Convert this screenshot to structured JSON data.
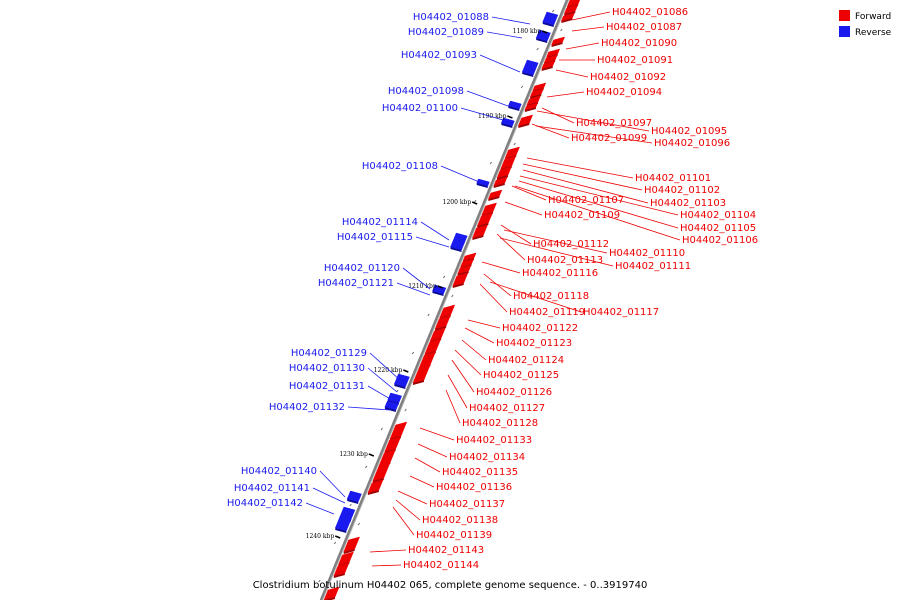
{
  "caption": "Clostridium botulinum H04402 065, complete genome sequence. - 0..3919740",
  "colors": {
    "forward": "#ee0000",
    "reverse": "#1a1aee",
    "backbone": "#808080"
  },
  "legend": [
    {
      "label": "Forward",
      "color": "#ee0000"
    },
    {
      "label": "Reverse",
      "color": "#1a1aee"
    }
  ],
  "ticks": [
    "1180 kbp",
    "1190 kbp",
    "1200 kbp",
    "1210 kbp",
    "1220 kbp",
    "1230 kbp",
    "1240 kbp"
  ],
  "reverse_labels": [
    "H04402_01088",
    "H04402_01089",
    "H04402_01093",
    "H04402_01098",
    "H04402_01100",
    "H04402_01108",
    "H04402_01114",
    "H04402_01115",
    "H04402_01120",
    "H04402_01121",
    "H04402_01129",
    "H04402_01130",
    "H04402_01131",
    "H04402_01132",
    "H04402_01140",
    "H04402_01141",
    "H04402_01142"
  ],
  "forward_labels": [
    "H04402_01086",
    "H04402_01087",
    "H04402_01090",
    "H04402_01091",
    "H04402_01092",
    "H04402_01094",
    "H04402_01097",
    "H04402_01095",
    "H04402_01099",
    "H04402_01096",
    "H04402_01101",
    "H04402_01102",
    "H04402_01103",
    "H04402_01107",
    "H04402_01104",
    "H04402_01109",
    "H04402_01105",
    "H04402_01106",
    "H04402_01112",
    "H04402_01110",
    "H04402_01113",
    "H04402_01111",
    "H04402_01116",
    "H04402_01118",
    "H04402_01119",
    "H04402_01117",
    "H04402_01122",
    "H04402_01123",
    "H04402_01124",
    "H04402_01125",
    "H04402_01126",
    "H04402_01127",
    "H04402_01128",
    "H04402_01133",
    "H04402_01134",
    "H04402_01135",
    "H04402_01136",
    "H04402_01137",
    "H04402_01138",
    "H04402_01139",
    "H04402_01143",
    "H04402_01144"
  ]
}
